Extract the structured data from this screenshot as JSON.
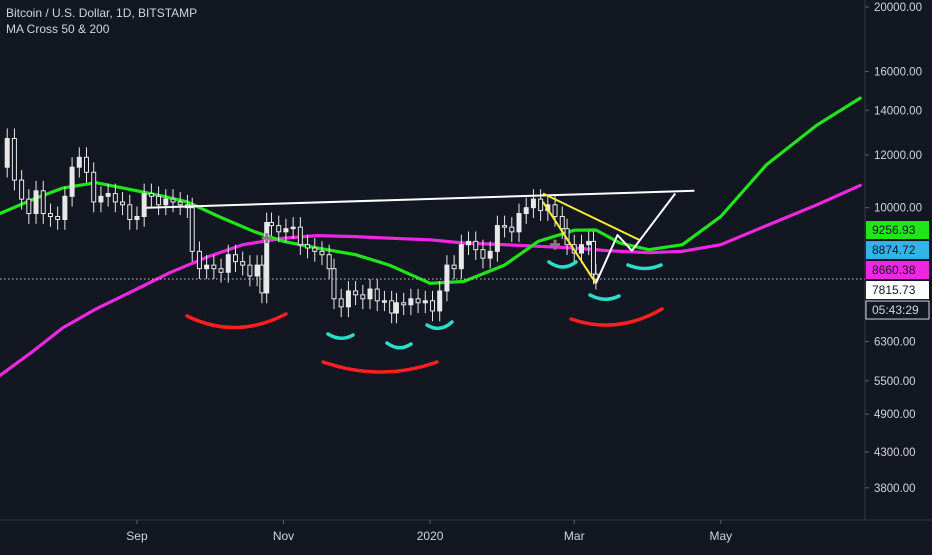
{
  "header": {
    "symbol": "Bitcoin / U.S. Dollar, 1D, BITSTAMP",
    "indicator": "MA Cross 50 & 200"
  },
  "colors": {
    "background": "#131722",
    "candles": "#e8e8e8",
    "ma50": "#22e41a",
    "ma200": "#ee28e0",
    "neckline": "#ffffff",
    "wedge": "#ffeb3b",
    "projection": "#ffffff",
    "arc_red": "#ff1f1f",
    "arc_teal": "#28e0c8",
    "cross_marker": "#808080"
  },
  "chart_data": {
    "type": "line",
    "title": "Bitcoin / U.S. Dollar, 1D, BITSTAMP",
    "subtitle": "MA Cross 50 & 200",
    "y_scale": "log",
    "ylim": [
      3400,
      20000
    ],
    "xlim": [
      "2019-07-06",
      "2020-06-30"
    ],
    "x_ticks": [
      {
        "date": "2019-09-01",
        "label": "Sep"
      },
      {
        "date": "2019-11-01",
        "label": "Nov"
      },
      {
        "date": "2020-01-01",
        "label": "2020"
      },
      {
        "date": "2020-03-01",
        "label": "Mar"
      },
      {
        "date": "2020-05-01",
        "label": "May"
      }
    ],
    "y_ticks": [
      "20000.00",
      "16000.00",
      "14000.00",
      "12000.00",
      "10000.00",
      "6300.00",
      "5500.00",
      "4900.00",
      "4300.00",
      "3800.00"
    ],
    "price_labels": [
      {
        "value": 9256.93,
        "text": "9256.93",
        "bg": "#22e41a",
        "fg": "#131722"
      },
      {
        "value": 8874.72,
        "text": "8874.72",
        "bg": "#33b3e8",
        "fg": "#131722"
      },
      {
        "value": 8660.38,
        "text": "8660.38",
        "bg": "#ee28e0",
        "fg": "#131722"
      },
      {
        "value": 7815.73,
        "text": "7815.73",
        "bg": "#ffffff",
        "fg": "#131722"
      }
    ],
    "countdown": "05:43:29",
    "current_price": 7815.73,
    "price_points": [
      [
        "2019-07-06",
        11500
      ],
      [
        "2019-07-09",
        12700
      ],
      [
        "2019-07-12",
        11000
      ],
      [
        "2019-07-15",
        10300
      ],
      [
        "2019-07-18",
        9800
      ],
      [
        "2019-07-21",
        10600
      ],
      [
        "2019-07-24",
        9800
      ],
      [
        "2019-07-27",
        9700
      ],
      [
        "2019-07-30",
        9600
      ],
      [
        "2019-08-02",
        10400
      ],
      [
        "2019-08-05",
        11500
      ],
      [
        "2019-08-08",
        11900
      ],
      [
        "2019-08-11",
        11300
      ],
      [
        "2019-08-14",
        10200
      ],
      [
        "2019-08-17",
        10400
      ],
      [
        "2019-08-20",
        10500
      ],
      [
        "2019-08-23",
        10200
      ],
      [
        "2019-08-26",
        10100
      ],
      [
        "2019-08-29",
        9600
      ],
      [
        "2019-09-01",
        9700
      ],
      [
        "2019-09-04",
        10500
      ],
      [
        "2019-09-07",
        10400
      ],
      [
        "2019-09-10",
        10100
      ],
      [
        "2019-09-13",
        10300
      ],
      [
        "2019-09-16",
        10200
      ],
      [
        "2019-09-19",
        10100
      ],
      [
        "2019-09-22",
        10000
      ],
      [
        "2019-09-24",
        8600
      ],
      [
        "2019-09-27",
        8100
      ],
      [
        "2019-09-30",
        8200
      ],
      [
        "2019-10-03",
        8100
      ],
      [
        "2019-10-06",
        8000
      ],
      [
        "2019-10-09",
        8500
      ],
      [
        "2019-10-12",
        8300
      ],
      [
        "2019-10-15",
        8200
      ],
      [
        "2019-10-18",
        7900
      ],
      [
        "2019-10-21",
        8200
      ],
      [
        "2019-10-23",
        7450
      ],
      [
        "2019-10-25",
        9500
      ],
      [
        "2019-10-27",
        9400
      ],
      [
        "2019-10-30",
        9200
      ],
      [
        "2019-11-02",
        9300
      ],
      [
        "2019-11-05",
        9350
      ],
      [
        "2019-11-08",
        8800
      ],
      [
        "2019-11-11",
        8700
      ],
      [
        "2019-11-14",
        8600
      ],
      [
        "2019-11-17",
        8500
      ],
      [
        "2019-11-20",
        8100
      ],
      [
        "2019-11-22",
        7300
      ],
      [
        "2019-11-25",
        7100
      ],
      [
        "2019-11-28",
        7500
      ],
      [
        "2019-12-01",
        7400
      ],
      [
        "2019-12-04",
        7300
      ],
      [
        "2019-12-07",
        7550
      ],
      [
        "2019-12-10",
        7250
      ],
      [
        "2019-12-13",
        7250
      ],
      [
        "2019-12-16",
        6950
      ],
      [
        "2019-12-18",
        7200
      ],
      [
        "2019-12-21",
        7150
      ],
      [
        "2019-12-24",
        7300
      ],
      [
        "2019-12-27",
        7200
      ],
      [
        "2019-12-30",
        7250
      ],
      [
        "2020-01-02",
        7000
      ],
      [
        "2020-01-05",
        7500
      ],
      [
        "2020-01-08",
        8200
      ],
      [
        "2020-01-11",
        8100
      ],
      [
        "2020-01-14",
        8800
      ],
      [
        "2020-01-17",
        8900
      ],
      [
        "2020-01-20",
        8650
      ],
      [
        "2020-01-23",
        8400
      ],
      [
        "2020-01-26",
        8600
      ],
      [
        "2020-01-29",
        9400
      ],
      [
        "2020-02-01",
        9350
      ],
      [
        "2020-02-04",
        9200
      ],
      [
        "2020-02-07",
        9800
      ],
      [
        "2020-02-10",
        10000
      ],
      [
        "2020-02-13",
        10300
      ],
      [
        "2020-02-16",
        9900
      ],
      [
        "2020-02-19",
        10100
      ],
      [
        "2020-02-22",
        9700
      ],
      [
        "2020-02-25",
        9300
      ],
      [
        "2020-02-27",
        8800
      ],
      [
        "2020-03-01",
        8550
      ],
      [
        "2020-03-04",
        8800
      ],
      [
        "2020-03-07",
        8900
      ],
      [
        "2020-03-09",
        7950
      ],
      [
        "2020-03-10",
        7815.73
      ]
    ],
    "series": [
      {
        "name": "MA 50",
        "color": "#22e41a",
        "points": [
          [
            "2019-07-06",
            9800
          ],
          [
            "2019-07-20",
            10300
          ],
          [
            "2019-08-01",
            10700
          ],
          [
            "2019-08-15",
            10900
          ],
          [
            "2019-09-01",
            10600
          ],
          [
            "2019-09-12",
            10400
          ],
          [
            "2019-09-22",
            10200
          ],
          [
            "2019-10-05",
            9700
          ],
          [
            "2019-10-20",
            9200
          ],
          [
            "2019-11-01",
            8900
          ],
          [
            "2019-11-15",
            8700
          ],
          [
            "2019-12-01",
            8500
          ],
          [
            "2019-12-15",
            8200
          ],
          [
            "2020-01-01",
            7700
          ],
          [
            "2020-01-15",
            7750
          ],
          [
            "2020-02-01",
            8200
          ],
          [
            "2020-02-15",
            8900
          ],
          [
            "2020-03-01",
            9250
          ],
          [
            "2020-03-10",
            9256.93
          ],
          [
            "2020-03-20",
            8850
          ],
          [
            "2020-04-01",
            8650
          ],
          [
            "2020-04-15",
            8800
          ],
          [
            "2020-05-01",
            9700
          ],
          [
            "2020-05-20",
            11600
          ],
          [
            "2020-06-10",
            13300
          ],
          [
            "2020-06-28",
            14600
          ]
        ]
      },
      {
        "name": "MA 200",
        "color": "#ee28e0",
        "points": [
          [
            "2019-07-06",
            5600
          ],
          [
            "2019-07-20",
            6100
          ],
          [
            "2019-08-01",
            6600
          ],
          [
            "2019-08-15",
            7050
          ],
          [
            "2019-09-01",
            7550
          ],
          [
            "2019-09-15",
            8000
          ],
          [
            "2019-10-01",
            8450
          ],
          [
            "2019-10-15",
            8800
          ],
          [
            "2019-11-01",
            9000
          ],
          [
            "2019-11-15",
            9080
          ],
          [
            "2019-12-01",
            9050
          ],
          [
            "2019-12-15",
            9000
          ],
          [
            "2020-01-01",
            8950
          ],
          [
            "2020-01-15",
            8850
          ],
          [
            "2020-02-01",
            8800
          ],
          [
            "2020-02-15",
            8750
          ],
          [
            "2020-03-01",
            8700
          ],
          [
            "2020-03-15",
            8620
          ],
          [
            "2020-04-01",
            8560
          ],
          [
            "2020-04-15",
            8600
          ],
          [
            "2020-05-01",
            8800
          ],
          [
            "2020-05-20",
            9400
          ],
          [
            "2020-06-10",
            10100
          ],
          [
            "2020-06-28",
            10800
          ]
        ]
      }
    ],
    "annotations": {
      "neckline": [
        [
          "2019-09-05",
          10000
        ],
        [
          "2020-04-20",
          10600
        ]
      ],
      "wedge_upper": [
        [
          "2020-02-17",
          10500
        ],
        [
          "2020-03-28",
          8950
        ]
      ],
      "wedge_lower": [
        [
          "2020-02-17",
          10200
        ],
        [
          "2020-03-10",
          7700
        ]
      ],
      "projection": [
        [
          "2020-03-10",
          7700
        ],
        [
          "2020-03-19",
          9100
        ],
        [
          "2020-03-25",
          8620
        ],
        [
          "2020-04-12",
          10500
        ]
      ],
      "cross_markers": [
        [
          "2019-10-25",
          9000
        ],
        [
          "2020-02-22",
          8800
        ]
      ]
    }
  }
}
